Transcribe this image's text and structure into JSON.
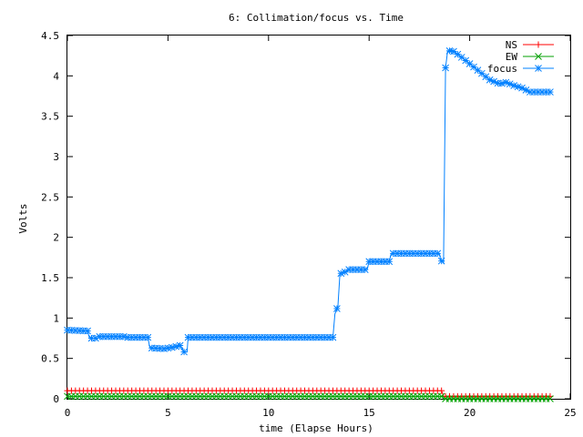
{
  "chart_data": {
    "type": "line",
    "title": "6: Collimation/focus vs. Time",
    "xlabel": "time (Elapse Hours)",
    "ylabel": "Volts",
    "xlim": [
      0,
      25
    ],
    "ylim": [
      0,
      4.5
    ],
    "x_ticks": [
      0,
      5,
      10,
      15,
      20,
      25
    ],
    "y_ticks": [
      0,
      0.5,
      1,
      1.5,
      2,
      2.5,
      3,
      3.5,
      4,
      4.5
    ],
    "grid": false,
    "legend_position": "top-right",
    "series": [
      {
        "name": "NS",
        "color": "#ff0000",
        "marker": "plus",
        "points": [
          [
            0,
            0.1
          ],
          [
            18.6,
            0.1
          ],
          [
            18.7,
            0.03
          ],
          [
            24,
            0.03
          ]
        ]
      },
      {
        "name": "EW",
        "color": "#00a000",
        "marker": "cross",
        "points": [
          [
            0,
            0.03
          ],
          [
            18.6,
            0.03
          ],
          [
            18.7,
            0.0
          ],
          [
            24,
            0.0
          ]
        ]
      },
      {
        "name": "focus",
        "color": "#0080ff",
        "marker": "star",
        "points": [
          [
            0,
            0.85
          ],
          [
            1.0,
            0.84
          ],
          [
            1.1,
            0.75
          ],
          [
            1.5,
            0.75
          ],
          [
            1.6,
            0.77
          ],
          [
            2.8,
            0.77
          ],
          [
            2.9,
            0.76
          ],
          [
            4.0,
            0.76
          ],
          [
            4.1,
            0.63
          ],
          [
            4.8,
            0.62
          ],
          [
            5.3,
            0.64
          ],
          [
            5.6,
            0.66
          ],
          [
            5.8,
            0.58
          ],
          [
            5.95,
            0.58
          ],
          [
            6.0,
            0.76
          ],
          [
            13.2,
            0.76
          ],
          [
            13.3,
            1.05
          ],
          [
            13.45,
            1.15
          ],
          [
            13.55,
            1.55
          ],
          [
            13.8,
            1.57
          ],
          [
            14.0,
            1.6
          ],
          [
            14.9,
            1.6
          ],
          [
            15.0,
            1.7
          ],
          [
            16.0,
            1.7
          ],
          [
            16.1,
            1.8
          ],
          [
            18.5,
            1.8
          ],
          [
            18.55,
            1.72
          ],
          [
            18.7,
            1.68
          ],
          [
            18.8,
            4.1
          ],
          [
            18.9,
            4.3
          ],
          [
            19.1,
            4.32
          ],
          [
            19.5,
            4.25
          ],
          [
            20.0,
            4.15
          ],
          [
            20.5,
            4.05
          ],
          [
            21.0,
            3.95
          ],
          [
            21.5,
            3.9
          ],
          [
            21.8,
            3.92
          ],
          [
            22.2,
            3.88
          ],
          [
            22.6,
            3.85
          ],
          [
            23.0,
            3.8
          ],
          [
            24.0,
            3.8
          ]
        ]
      }
    ]
  }
}
